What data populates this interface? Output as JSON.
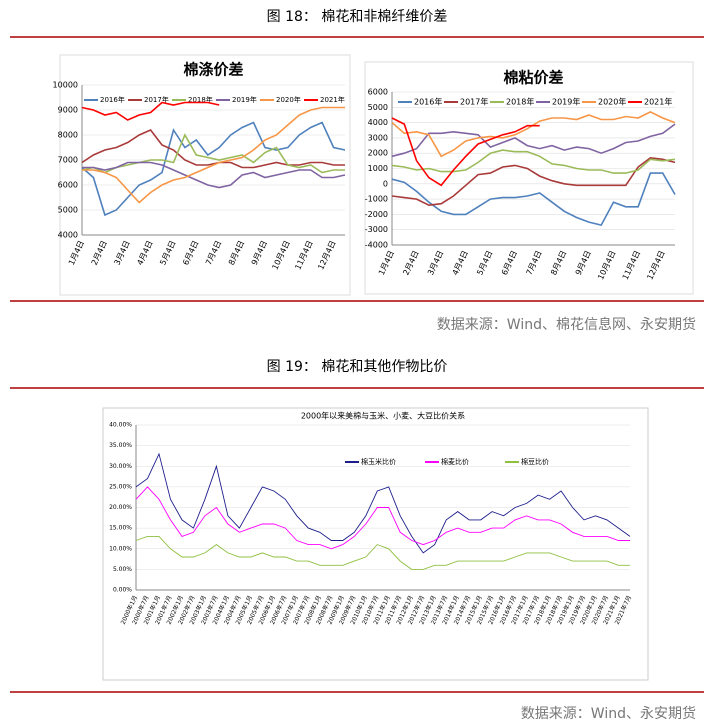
{
  "figure18": {
    "caption": "图 18： 棉花和非棉纤维价差",
    "source": "数据来源：Wind、棉花信息网、永安期货"
  },
  "figure19": {
    "caption": "图 19： 棉花和其他作物比价",
    "source": "数据来源：Wind、永安期货"
  },
  "chart_data": [
    {
      "type": "line",
      "title": "棉涤价差",
      "categories": [
        "1月4日",
        null,
        "2月4日",
        null,
        "3月4日",
        null,
        "4月4日",
        null,
        "5月4日",
        null,
        "6月4日",
        null,
        "7月4日",
        null,
        "8月4日",
        null,
        "9月4日",
        null,
        "10月4日",
        null,
        "11月4日",
        null,
        "12月4日",
        null
      ],
      "ylim": [
        4000,
        10000
      ],
      "yticks": [
        4000,
        5000,
        6000,
        7000,
        8000,
        9000,
        10000
      ],
      "series": [
        {
          "name": "2016年",
          "color": "#4f81bd",
          "values": [
            6700,
            6300,
            4800,
            5000,
            5500,
            6000,
            6200,
            6500,
            8200,
            7500,
            7800,
            7200,
            7500,
            8000,
            8300,
            8500,
            7500,
            7400,
            7500,
            8000,
            8300,
            8500,
            7500,
            7400
          ]
        },
        {
          "name": "2017年",
          "color": "#a93a3a",
          "values": [
            6900,
            7200,
            7400,
            7500,
            7700,
            8000,
            8200,
            7600,
            7400,
            7000,
            6800,
            6800,
            6900,
            6900,
            6700,
            6700,
            6800,
            6900,
            6800,
            6800,
            6900,
            6900,
            6800,
            6800
          ]
        },
        {
          "name": "2018年",
          "color": "#9bbb59",
          "values": [
            6600,
            6700,
            6500,
            6700,
            6800,
            6900,
            7000,
            7000,
            6900,
            8000,
            7200,
            7100,
            7000,
            7100,
            7200,
            6900,
            7300,
            7500,
            6800,
            6700,
            6800,
            6500,
            6600,
            6600
          ]
        },
        {
          "name": "2019年",
          "color": "#8064a2",
          "values": [
            6700,
            6700,
            6600,
            6700,
            6900,
            6900,
            6900,
            6800,
            6600,
            6400,
            6200,
            6000,
            5900,
            6000,
            6400,
            6500,
            6300,
            6400,
            6500,
            6600,
            6600,
            6300,
            6300,
            6400
          ]
        },
        {
          "name": "2020年",
          "color": "#f79646",
          "values": [
            6600,
            6600,
            6500,
            6300,
            5800,
            5300,
            5700,
            6000,
            6200,
            6300,
            6500,
            6700,
            6900,
            7000,
            7100,
            7400,
            7800,
            8000,
            8400,
            8800,
            9000,
            9100,
            9100,
            9100
          ]
        },
        {
          "name": "2021年",
          "color": "#ff0000",
          "values": [
            9100,
            9000,
            8800,
            8900,
            8600,
            8800,
            8900,
            9300,
            9200,
            9300,
            9300,
            9300,
            9200,
            null,
            null,
            null,
            null,
            null,
            null,
            null,
            null,
            null,
            null,
            null
          ]
        }
      ]
    },
    {
      "type": "line",
      "title": "棉粘价差",
      "categories": [
        "1月4日",
        null,
        "2月4日",
        null,
        "3月4日",
        null,
        "4月4日",
        null,
        "5月4日",
        null,
        "6月4日",
        null,
        "7月4日",
        null,
        "8月4日",
        null,
        "9月4日",
        null,
        "10月4日",
        null,
        "11月4日",
        null,
        "12月4日",
        null
      ],
      "ylim": [
        -4000,
        6000
      ],
      "yticks": [
        -4000,
        -3000,
        -2000,
        -1000,
        0,
        1000,
        2000,
        3000,
        4000,
        5000,
        6000
      ],
      "series": [
        {
          "name": "2016年",
          "color": "#4f81bd",
          "values": [
            300,
            100,
            -500,
            -1200,
            -1800,
            -2000,
            -2000,
            -1500,
            -1000,
            -900,
            -900,
            -800,
            -600,
            -1200,
            -1800,
            -2200,
            -2500,
            -2700,
            -1200,
            -1500,
            -1500,
            700,
            700,
            -700
          ]
        },
        {
          "name": "2017年",
          "color": "#a93a3a",
          "values": [
            -800,
            -900,
            -1000,
            -1400,
            -1300,
            -800,
            -100,
            600,
            700,
            1100,
            1200,
            1000,
            500,
            200,
            0,
            -100,
            -100,
            -100,
            -100,
            -100,
            1100,
            1700,
            1600,
            1400
          ]
        },
        {
          "name": "2018年",
          "color": "#9bbb59",
          "values": [
            1200,
            1100,
            900,
            1000,
            800,
            800,
            900,
            1400,
            2000,
            2200,
            2100,
            2100,
            1800,
            1300,
            1200,
            1000,
            900,
            900,
            700,
            700,
            900,
            1600,
            1500,
            1600
          ]
        },
        {
          "name": "2019年",
          "color": "#8064a2",
          "values": [
            1800,
            2000,
            2300,
            3300,
            3300,
            3400,
            3300,
            3200,
            2400,
            2700,
            3000,
            2500,
            2300,
            2500,
            2200,
            2400,
            2300,
            2000,
            2300,
            2700,
            2800,
            3100,
            3300,
            3900
          ]
        },
        {
          "name": "2020年",
          "color": "#f79646",
          "values": [
            4000,
            3300,
            3400,
            3200,
            1800,
            2200,
            2800,
            3000,
            3100,
            3000,
            3200,
            3600,
            4100,
            4300,
            4300,
            4200,
            4500,
            4200,
            4200,
            4400,
            4300,
            4700,
            4300,
            4000
          ]
        },
        {
          "name": "2021年",
          "color": "#ff0000",
          "values": [
            4300,
            3900,
            1500,
            400,
            -100,
            900,
            1800,
            2600,
            2900,
            3200,
            3400,
            3800,
            3800,
            null,
            null,
            null,
            null,
            null,
            null,
            null,
            null,
            null,
            null,
            null
          ]
        }
      ]
    },
    {
      "type": "line",
      "title": "2000年以来美棉与玉米、小麦、大豆比价关系",
      "categories": [
        "2000年1月",
        "2000年7月",
        "2001年1月",
        "2001年7月",
        "2002年1月",
        "2002年7月",
        "2003年1月",
        "2003年7月",
        "2004年1月",
        "2004年7月",
        "2005年1月",
        "2005年7月",
        "2006年1月",
        "2006年7月",
        "2007年1月",
        "2007年7月",
        "2008年1月",
        "2008年7月",
        "2009年1月",
        "2009年7月",
        "2010年1月",
        "2010年7月",
        "2011年1月",
        "2011年7月",
        "2012年1月",
        "2012年7月",
        "2013年1月",
        "2013年7月",
        "2014年1月",
        "2014年7月",
        "2015年1月",
        "2015年7月",
        "2016年1月",
        "2016年7月",
        "2017年1月",
        "2017年7月",
        "2018年1月",
        "2018年7月",
        "2019年1月",
        "2019年7月",
        "2020年1月",
        "2020年7月",
        "2021年1月",
        "2021年7月"
      ],
      "ylim": [
        0,
        40
      ],
      "yticks": [
        {
          "value": 0,
          "label": "0.00%"
        },
        {
          "value": 5,
          "label": "5.00%"
        },
        {
          "value": 10,
          "label": "10.00%"
        },
        {
          "value": 15,
          "label": "15.00%"
        },
        {
          "value": 20,
          "label": "20.00%"
        },
        {
          "value": 25,
          "label": "25.00%"
        },
        {
          "value": 30,
          "label": "30.00%"
        },
        {
          "value": 35,
          "label": "35.00%"
        },
        {
          "value": 40,
          "label": "40.00%"
        }
      ],
      "series": [
        {
          "name": "棉玉米比价",
          "color": "#1f1f8c",
          "values": [
            25,
            27,
            33,
            22,
            17,
            15,
            22,
            30,
            18,
            15,
            20,
            25,
            24,
            22,
            18,
            15,
            14,
            12,
            12,
            14,
            18,
            24,
            25,
            18,
            13,
            9,
            11,
            17,
            19,
            17,
            17,
            19,
            18,
            20,
            21,
            23,
            22,
            24,
            20,
            17,
            18,
            17,
            15,
            13
          ]
        },
        {
          "name": "棉麦比价",
          "color": "#ff00ff",
          "values": [
            22,
            25,
            22,
            17,
            13,
            14,
            18,
            20,
            16,
            14,
            15,
            16,
            16,
            15,
            12,
            11,
            11,
            10,
            11,
            13,
            16,
            20,
            20,
            14,
            12,
            11,
            12,
            14,
            15,
            14,
            14,
            15,
            15,
            17,
            18,
            17,
            17,
            16,
            14,
            13,
            13,
            13,
            12,
            12
          ]
        },
        {
          "name": "棉豆比价",
          "color": "#8fbf3f",
          "values": [
            12,
            13,
            13,
            10,
            8,
            8,
            9,
            11,
            9,
            8,
            8,
            9,
            8,
            8,
            7,
            7,
            6,
            6,
            6,
            7,
            8,
            11,
            10,
            7,
            5,
            5,
            6,
            6,
            7,
            7,
            7,
            7,
            7,
            8,
            9,
            9,
            9,
            8,
            7,
            7,
            7,
            7,
            6,
            6
          ]
        }
      ]
    }
  ]
}
